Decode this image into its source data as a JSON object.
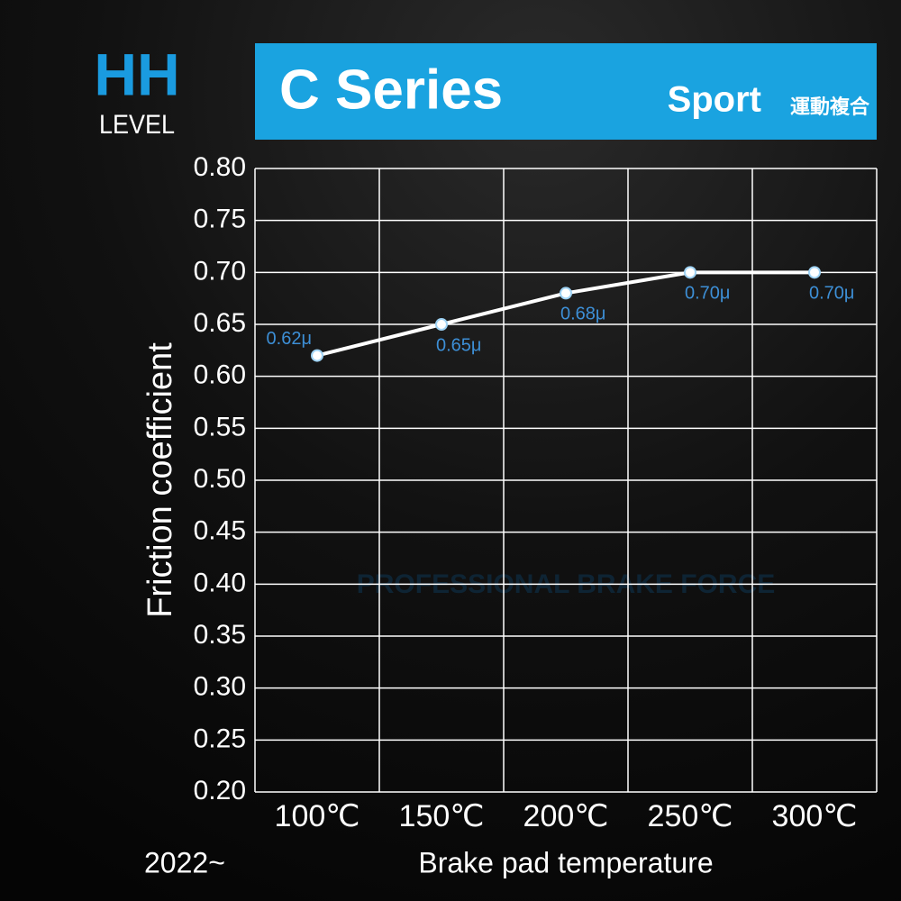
{
  "brand": "HH",
  "level": "LEVEL",
  "badge": "Sport",
  "badge_sub": "運動複合",
  "note": "2022~",
  "watermark": "PROFESSIONAL BRAKE FORCE",
  "chart_data": {
    "type": "line",
    "title": "C Series",
    "x_label": "Brake pad temperature",
    "y_label": "Friction coefficient",
    "categories": [
      "100℃",
      "150℃",
      "200℃",
      "250℃",
      "300℃"
    ],
    "series": [
      {
        "name": "C Series",
        "color": "#ffffff",
        "values": [
          0.62,
          0.65,
          0.68,
          0.7,
          0.7
        ],
        "value_labels": [
          "0.62μ",
          "0.65μ",
          "0.68μ",
          "0.70μ",
          "0.70μ"
        ]
      }
    ],
    "ylim": [
      0.2,
      0.8
    ],
    "yticks": [
      {
        "value": 0.2,
        "label": "0.20"
      },
      0.25,
      {
        "value": 0.3,
        "label": "0.30"
      },
      0.35,
      {
        "value": 0.4,
        "label": "0.40"
      },
      0.45,
      {
        "value": 0.5,
        "label": "0.50"
      },
      0.55,
      {
        "value": 0.6,
        "label": "0.60"
      },
      0.65,
      {
        "value": 0.7,
        "label": "0.70"
      },
      0.75,
      {
        "value": 0.8,
        "label": "0.80"
      }
    ],
    "grid": true,
    "label_color": "#3d8fd6"
  }
}
